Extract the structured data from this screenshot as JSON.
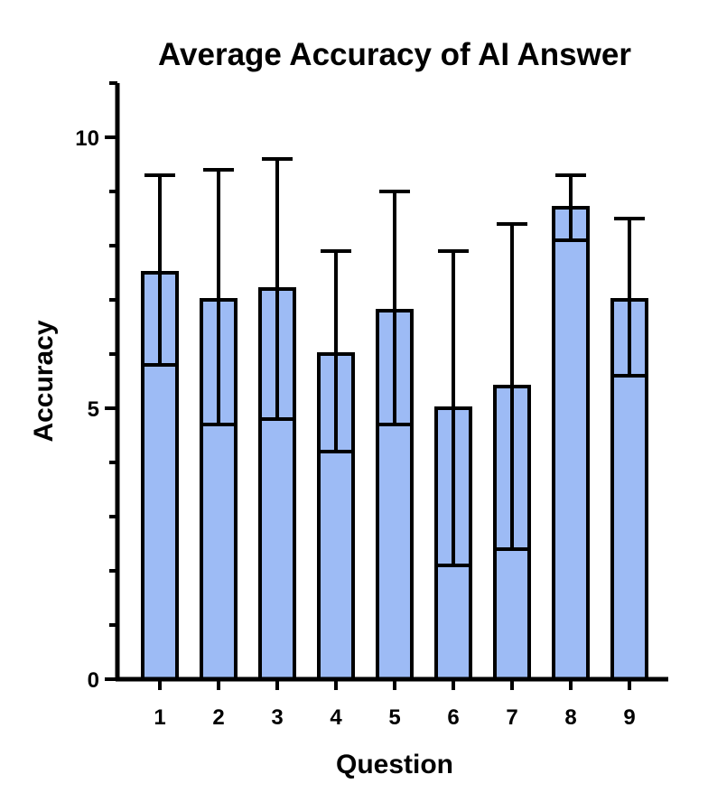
{
  "chart_data": {
    "type": "bar",
    "title": "Average Accuracy of  AI Answer",
    "xlabel": "Question",
    "ylabel": "Accuracy",
    "categories": [
      "1",
      "2",
      "3",
      "4",
      "5",
      "6",
      "7",
      "8",
      "9"
    ],
    "values": [
      7.5,
      7.0,
      7.2,
      6.0,
      6.8,
      5.0,
      5.4,
      8.7,
      7.0
    ],
    "error_low": [
      5.8,
      4.7,
      4.8,
      4.2,
      4.7,
      2.1,
      2.4,
      8.1,
      5.6
    ],
    "error_high": [
      9.3,
      9.4,
      9.6,
      7.9,
      9.0,
      7.9,
      8.4,
      9.3,
      8.5
    ],
    "ylim": [
      0,
      11
    ],
    "yticks": [
      0,
      5,
      10
    ],
    "ytick_labels": [
      "0",
      "5",
      "10"
    ],
    "grid": false,
    "colors": {
      "bar_fill": "#9dbbf5",
      "bar_stroke": "#000000",
      "axis": "#000000"
    }
  }
}
